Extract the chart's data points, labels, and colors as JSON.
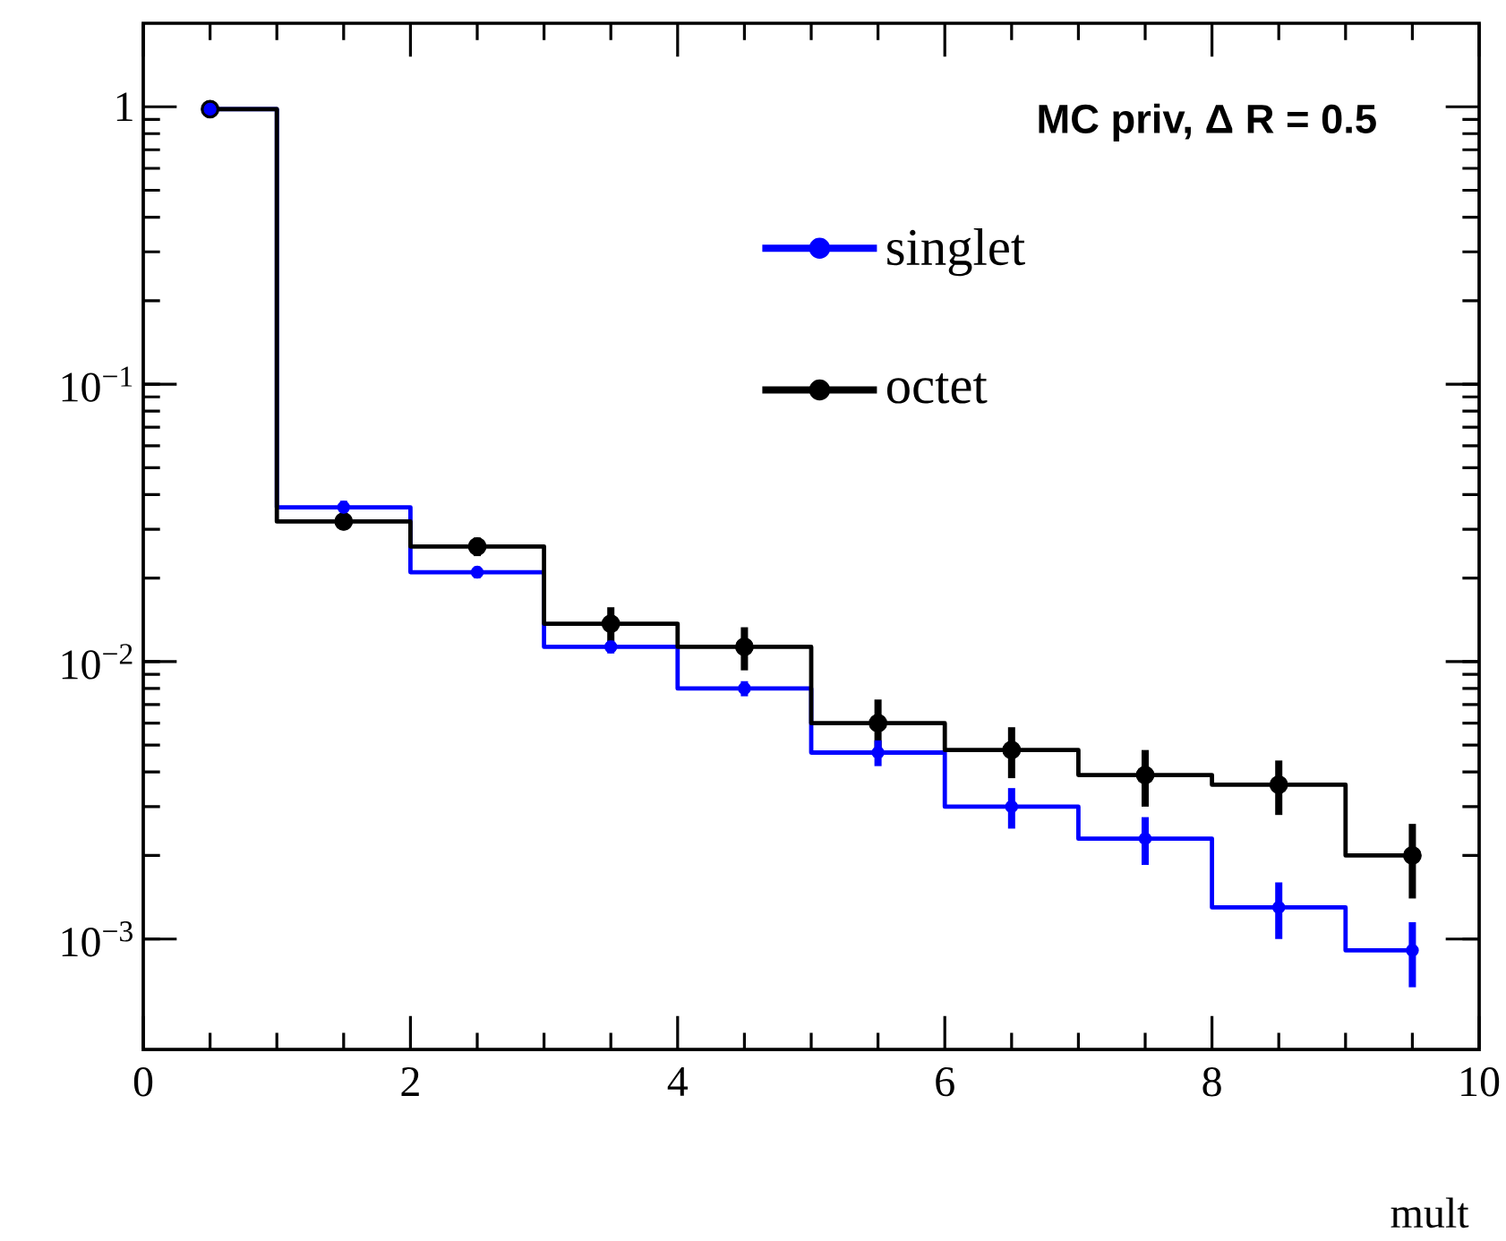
{
  "chart_data": {
    "type": "step",
    "title": "MC priv, Δ R = 0.5",
    "xlabel": "mult",
    "x": [
      0.5,
      1.5,
      2.5,
      3.5,
      4.5,
      5.5,
      6.5,
      7.5,
      8.5,
      9.5
    ],
    "series": [
      {
        "name": "singlet",
        "color": "#0000ff",
        "values": [
          0.98,
          0.036,
          0.021,
          0.0113,
          0.008,
          0.0047,
          0.003,
          0.0023,
          0.0013,
          0.00091
        ],
        "errors": [
          null,
          0.002,
          0.001,
          0.0006,
          0.0005,
          0.0005,
          0.0005,
          0.00045,
          0.0003,
          0.00024
        ]
      },
      {
        "name": "octet",
        "color": "#000000",
        "values": [
          0.98,
          0.032,
          0.026,
          0.0137,
          0.0113,
          0.006,
          0.0048,
          0.0039,
          0.0036,
          0.002
        ],
        "errors": [
          null,
          0.002,
          0.002,
          0.002,
          0.002,
          0.0013,
          0.001,
          0.0009,
          0.0008,
          0.0006
        ]
      }
    ],
    "xlim": [
      0,
      10
    ],
    "xticks": [
      0,
      2,
      4,
      6,
      8,
      10
    ],
    "ylim": [
      0.0004,
      2
    ],
    "yticks": [
      {
        "value": 0.001,
        "label": "10$^{−3}$"
      },
      {
        "value": 0.01,
        "label": "10$^{−2}$"
      },
      {
        "value": 0.1,
        "label": "10$^{−1}$"
      },
      1
    ],
    "log": "y",
    "marker": "circle",
    "legend": "top"
  }
}
